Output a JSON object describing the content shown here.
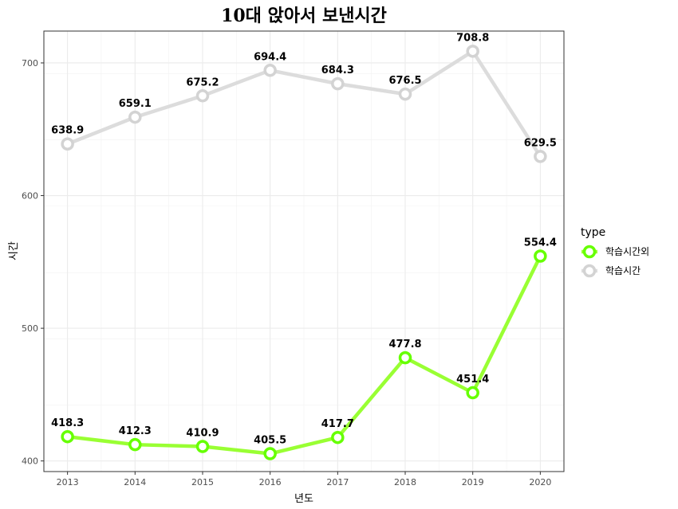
{
  "chart_data": {
    "type": "line",
    "title": "10대 앉아서 보낸시간",
    "xlabel": "년도",
    "ylabel": "시간",
    "x": [
      2013,
      2014,
      2015,
      2016,
      2017,
      2018,
      2019,
      2020
    ],
    "ylim": [
      392,
      724
    ],
    "yticks": [
      400,
      500,
      600,
      700
    ],
    "grid": true,
    "legend": {
      "title": "type",
      "position": "right"
    },
    "series": [
      {
        "name": "학습시간외",
        "color": "#99ff33",
        "marker_color": "#66ff00",
        "values": [
          418.3,
          412.3,
          410.9,
          405.5,
          417.7,
          477.8,
          451.4,
          554.4
        ],
        "labels": [
          "418.3",
          "412.3",
          "410.9",
          "405.5",
          "417.7",
          "477.8",
          "451.4",
          "554.4"
        ]
      },
      {
        "name": "학습시간",
        "color": "#dcdcdc",
        "marker_color": "#d3d3d3",
        "values": [
          638.9,
          659.1,
          675.2,
          694.4,
          684.3,
          676.5,
          708.8,
          629.5
        ],
        "labels": [
          "638.9",
          "659.1",
          "675.2",
          "694.4",
          "684.3",
          "676.5",
          "708.8",
          "629.5"
        ]
      }
    ]
  }
}
